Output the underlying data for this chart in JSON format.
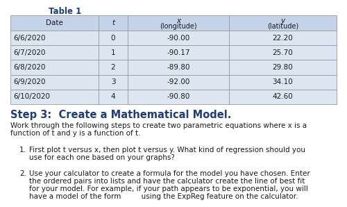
{
  "title_table": "Table 1",
  "headers_line1": [
    "Date",
    "t",
    "x",
    "y"
  ],
  "headers_line2": [
    "",
    "",
    "(longitude)",
    "(latitude)"
  ],
  "rows": [
    [
      "6/6/2020",
      "0",
      "-90.00",
      "22.20"
    ],
    [
      "6/7/2020",
      "1",
      "-90.17",
      "25.70"
    ],
    [
      "6/8/2020",
      "2",
      "-89.80",
      "29.80"
    ],
    [
      "6/9/2020",
      "3",
      "-92.00",
      "34.10"
    ],
    [
      "6/10/2020",
      "4",
      "-90.80",
      "42.60"
    ]
  ],
  "step_title": "Step 3:  Create a Mathematical Model.",
  "step_intro_1": "Work through the following steps to create two parametric equations where x is a",
  "step_intro_2": "function of t and y is a function of t.",
  "bullet1_lines": [
    "First plot t versus x, then plot t versus y. What kind of regression should you",
    "use for each one based on your graphs?"
  ],
  "bullet2_lines": [
    "Use your calculator to create a formula for the model you have chosen. Enter",
    "the ordered pairs into lists and have the calculator create the line of best fit",
    "for your model. For example, if your path appears to be exponential, you will",
    "have a model of the form         using the ExpReg feature on the calculator."
  ],
  "bg_color": "#ffffff",
  "table_header_bg": "#c5d3e8",
  "table_row_bg": "#dce6f1",
  "table_border_color": "#999999",
  "step_title_color": "#1f3d7a",
  "body_text_color": "#1a1a1a",
  "title_color": "#1f3d7a"
}
